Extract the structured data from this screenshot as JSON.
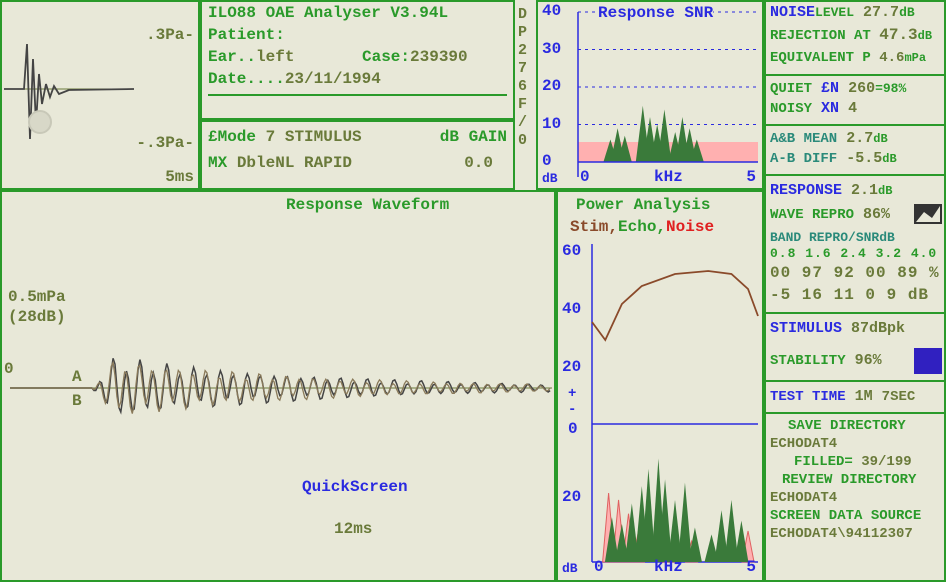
{
  "header": {
    "title": "ILO88 OAE Analyser V3.94L",
    "patient_label": "Patient:",
    "patient": "",
    "ear_label": "Ear..",
    "ear": "left",
    "case_label": "Case:",
    "case": "239390",
    "date_label": "Date....",
    "date": "23/11/1994",
    "mode_label": "£Mode",
    "mode_num": "7",
    "mode_val": "STIMULUS",
    "gain_label": "dB GAIN",
    "mx_label": "MX",
    "mx_val": "DbleNL RAPID",
    "gain_val": "0.0"
  },
  "stim_wave": {
    "top_label": ".3Pa-",
    "bot_label": "-.3Pa-",
    "time": "5ms"
  },
  "snr": {
    "title": "Response SNR",
    "side_label": "D\nP\n2\n7\n6\nF\n/\n0",
    "y_ticks": [
      40,
      30,
      20,
      10,
      0
    ],
    "y_min": 0,
    "y_max": 40,
    "x_min": 0,
    "x_max": 5,
    "x_label": "kHz",
    "db_label": "dB",
    "grid_color": "#2a2ae0",
    "bars": [
      {
        "x": 0.9,
        "h": 6
      },
      {
        "x": 1.1,
        "h": 9
      },
      {
        "x": 1.3,
        "h": 7
      },
      {
        "x": 1.8,
        "h": 15
      },
      {
        "x": 2.0,
        "h": 12
      },
      {
        "x": 2.2,
        "h": 10
      },
      {
        "x": 2.4,
        "h": 14
      },
      {
        "x": 2.7,
        "h": 8
      },
      {
        "x": 2.9,
        "h": 12
      },
      {
        "x": 3.1,
        "h": 9
      },
      {
        "x": 3.3,
        "h": 6
      }
    ],
    "hatch_h": 5
  },
  "right_col": {
    "noise_label": "NOISE",
    "noise_level_lbl": "LEVEL",
    "noise_level": "27.7",
    "noise_unit": "dB",
    "rej_label": "REJECTION AT",
    "rej": "47.3",
    "rej_unit": "dB",
    "equiv_label": "EQUIVALENT P",
    "equiv": "4.6",
    "equiv_unit": "mPa",
    "quiet_label": "QUIET",
    "quiet_sym": "£N",
    "quiet_val": "260",
    "quiet_pct": "=98%",
    "noisy_label": "NOISY",
    "noisy_sym": "XN",
    "noisy_val": "4",
    "ab_mean_label": "A&B MEAN",
    "ab_mean": "2.7",
    "ab_unit": "dB",
    "ab_diff_label": "A-B DIFF",
    "ab_diff": "-5.5",
    "resp_label": "RESPONSE",
    "resp_val": "2.1",
    "resp_unit": "dB",
    "wave_repro_label": "WAVE REPRO",
    "wave_repro": "86%",
    "band_label": "BAND REPRO/SNRdB",
    "band_hz": [
      "0.8",
      "1.6",
      "2.4",
      "3.2",
      "4.0",
      "KHz"
    ],
    "band_pct": [
      "00",
      "97",
      "92",
      "00",
      "89",
      "%"
    ],
    "band_db": [
      "-5",
      "16",
      "11",
      " 0",
      " 9",
      "dB"
    ],
    "stim_label": "STIMULUS",
    "stim_val": "87dBpk",
    "stab_label": "STABILITY",
    "stab_val": "96%",
    "test_label": "TEST TIME",
    "test_min": "1M",
    "test_sec": "7SEC",
    "save_dir_label": "SAVE DIRECTORY",
    "save_dir": "ECHODAT4",
    "filled_label": "FILLED=",
    "filled": "39/199",
    "rev_dir_label": "REVIEW DIRECTORY",
    "rev_dir": "ECHODAT4",
    "src_label": "SCREEN DATA SOURCE",
    "src": "ECHODAT4\\94112307"
  },
  "response": {
    "title": "Response Waveform",
    "amp_top": "0.5mPa",
    "amp_db": "(28dB)",
    "a": "A",
    "b": "B",
    "quick": "QuickScreen",
    "time": "12ms",
    "zero": "0"
  },
  "power": {
    "title": "Power Analysis",
    "stim": "Stim,",
    "echo": "Echo,",
    "noise": "Noise",
    "y_ticks": [
      60,
      40,
      20,
      "+\n-",
      0,
      20
    ],
    "db_label": "dB",
    "x_min": 0,
    "x_max": 5,
    "x_label": "kHz",
    "stim_curve": [
      [
        0,
        34
      ],
      [
        0.4,
        28
      ],
      [
        0.9,
        40
      ],
      [
        1.5,
        46
      ],
      [
        2.5,
        50
      ],
      [
        3.5,
        51
      ],
      [
        4.2,
        50
      ],
      [
        4.7,
        45
      ],
      [
        5,
        36
      ]
    ],
    "echo_peaks": [
      {
        "x": 0.6,
        "h": 13
      },
      {
        "x": 0.9,
        "h": 11
      },
      {
        "x": 1.2,
        "h": 17
      },
      {
        "x": 1.5,
        "h": 22
      },
      {
        "x": 1.7,
        "h": 27
      },
      {
        "x": 2.0,
        "h": 30
      },
      {
        "x": 2.2,
        "h": 24
      },
      {
        "x": 2.5,
        "h": 18
      },
      {
        "x": 2.8,
        "h": 23
      },
      {
        "x": 3.1,
        "h": 10
      },
      {
        "x": 3.6,
        "h": 8
      },
      {
        "x": 3.9,
        "h": 15
      },
      {
        "x": 4.2,
        "h": 18
      },
      {
        "x": 4.5,
        "h": 12
      }
    ],
    "noise_peaks": [
      {
        "x": 0.5,
        "h": 20
      },
      {
        "x": 0.8,
        "h": 18
      },
      {
        "x": 1.1,
        "h": 14
      },
      {
        "x": 1.4,
        "h": 9
      },
      {
        "x": 2.3,
        "h": 7
      },
      {
        "x": 3.0,
        "h": 6
      },
      {
        "x": 4.7,
        "h": 9
      }
    ]
  },
  "colors": {
    "green": "#2a9a2a",
    "olive": "#6a7a3a",
    "blue": "#2a2ae0",
    "brown": "#8a4a2a",
    "red": "#e02020",
    "teal": "#2a8a7a",
    "blob": "#3a7a3a"
  }
}
